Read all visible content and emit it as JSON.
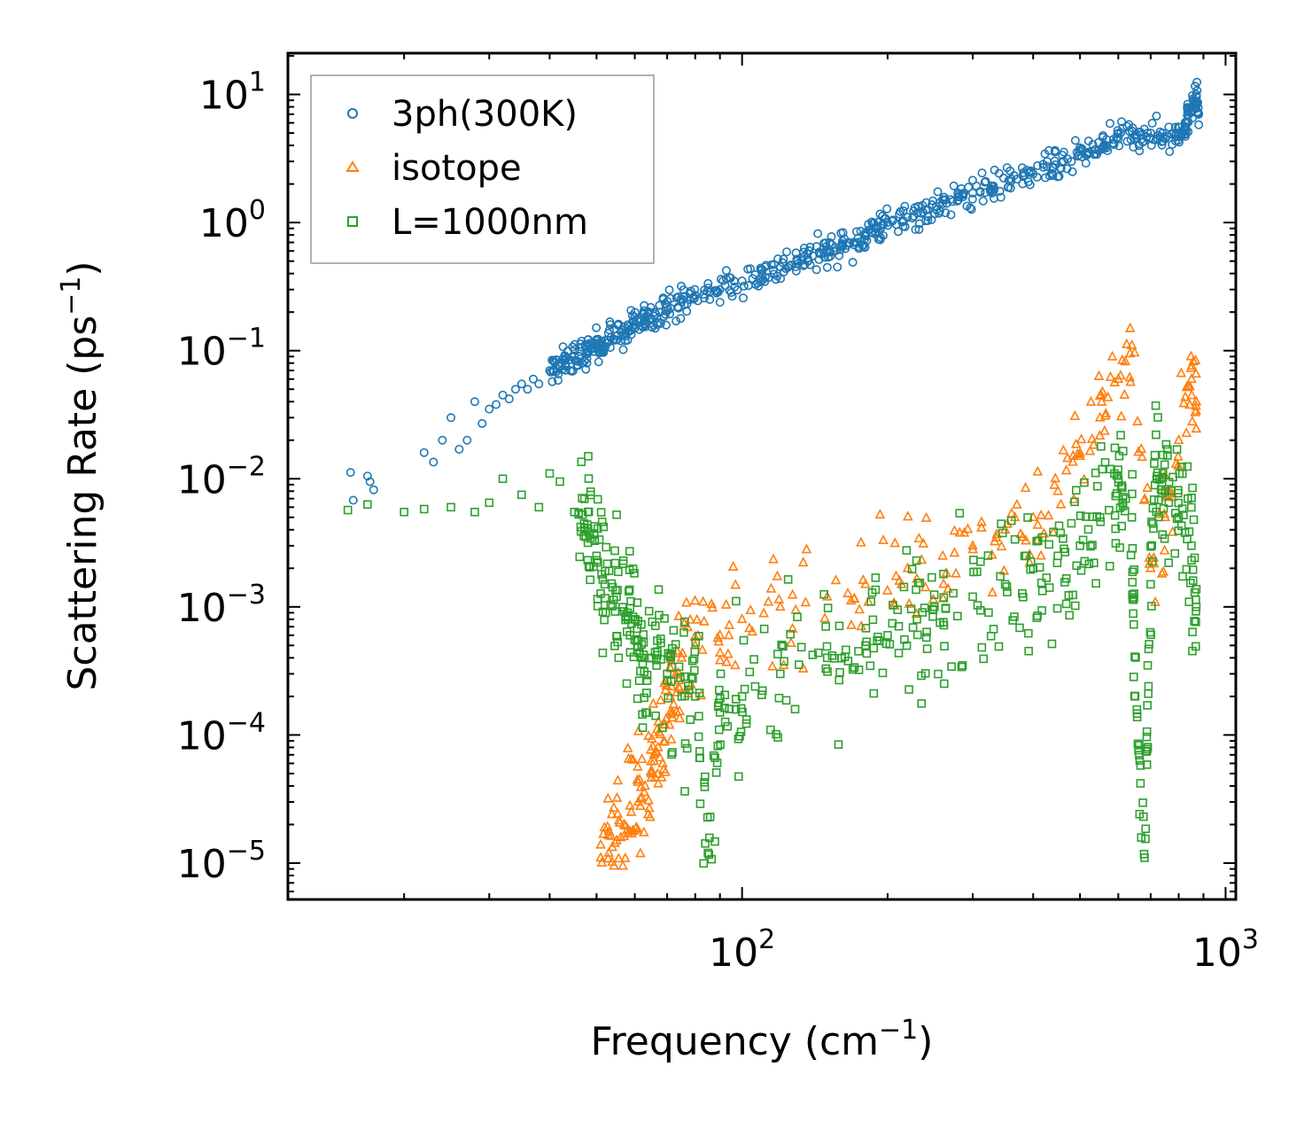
{
  "chart_data": {
    "type": "scatter",
    "title": "",
    "xlabel": "Frequency (cm",
    "xlabel_sup": "−1",
    "xlabel_end": ")",
    "ylabel": "Scattering Rate (ps",
    "ylabel_sup": "−1",
    "ylabel_end": ")",
    "xscale": "log",
    "yscale": "log",
    "xlim": [
      11.5,
      1050
    ],
    "ylim": [
      5.2e-06,
      21
    ],
    "x_ticks": [
      {
        "value": 100,
        "base": "10",
        "exp": "2"
      },
      {
        "value": 1000,
        "base": "10",
        "exp": "3"
      }
    ],
    "y_ticks": [
      {
        "value": 10,
        "base": "10",
        "exp": "1"
      },
      {
        "value": 1,
        "base": "10",
        "exp": "0"
      },
      {
        "value": 0.1,
        "base": "10",
        "exp": "−1"
      },
      {
        "value": 0.01,
        "base": "10",
        "exp": "−2"
      },
      {
        "value": 0.001,
        "base": "10",
        "exp": "−3"
      },
      {
        "value": 0.0001,
        "base": "10",
        "exp": "−4"
      },
      {
        "value": 1e-05,
        "base": "10",
        "exp": "−5"
      }
    ],
    "legend_position": "top-left",
    "series": [
      {
        "name": "3ph(300K)",
        "marker": "circle",
        "color": "#1f77b4",
        "points": [
          [
            15.5,
            0.0112
          ],
          [
            15.7,
            0.0068
          ],
          [
            16.8,
            0.0105
          ],
          [
            17.0,
            0.0095
          ],
          [
            17.3,
            0.0082
          ],
          [
            22,
            0.016
          ],
          [
            23,
            0.0135
          ],
          [
            24,
            0.02
          ],
          [
            25,
            0.03
          ],
          [
            26,
            0.017
          ],
          [
            27,
            0.02
          ],
          [
            28,
            0.04
          ],
          [
            29,
            0.027
          ],
          [
            30,
            0.035
          ],
          [
            31,
            0.038
          ],
          [
            32,
            0.045
          ],
          [
            33,
            0.042
          ],
          [
            34,
            0.05
          ],
          [
            35,
            0.055
          ],
          [
            36,
            0.05
          ],
          [
            37,
            0.06
          ],
          [
            38,
            0.055
          ],
          [
            40,
            0.07
          ],
          [
            42,
            0.075
          ],
          [
            44,
            0.085
          ],
          [
            46,
            0.09
          ],
          [
            48,
            0.1
          ],
          [
            50,
            0.11
          ],
          [
            52,
            0.12
          ],
          [
            55,
            0.13
          ],
          [
            58,
            0.14
          ],
          [
            60,
            0.16
          ],
          [
            63,
            0.18
          ],
          [
            66,
            0.2
          ],
          [
            70,
            0.22
          ],
          [
            75,
            0.24
          ],
          [
            80,
            0.27
          ],
          [
            90,
            0.3
          ],
          [
            100,
            0.35
          ],
          [
            110,
            0.4
          ],
          [
            120,
            0.45
          ],
          [
            130,
            0.5
          ],
          [
            140,
            0.55
          ],
          [
            150,
            0.6
          ],
          [
            160,
            0.65
          ],
          [
            170,
            0.7
          ],
          [
            180,
            0.8
          ],
          [
            190,
            0.9
          ],
          [
            200,
            1.0
          ],
          [
            220,
            1.1
          ],
          [
            240,
            1.25
          ],
          [
            260,
            1.4
          ],
          [
            280,
            1.5
          ],
          [
            300,
            1.7
          ],
          [
            330,
            1.9
          ],
          [
            360,
            2.1
          ],
          [
            400,
            2.4
          ],
          [
            440,
            2.7
          ],
          [
            480,
            3.0
          ],
          [
            520,
            3.5
          ],
          [
            560,
            4.0
          ],
          [
            600,
            4.5
          ],
          [
            650,
            4.8
          ],
          [
            700,
            5.0
          ],
          [
            750,
            4.5
          ],
          [
            800,
            5.0
          ],
          [
            830,
            6.0
          ],
          [
            850,
            8.0
          ],
          [
            870,
            10.0
          ],
          [
            880,
            7.0
          ]
        ]
      },
      {
        "name": "isotope",
        "marker": "triangle",
        "color": "#ff7f0e",
        "points": [
          [
            51,
            1.1e-05
          ],
          [
            53,
            1.2e-05
          ],
          [
            55,
            1.5e-05
          ],
          [
            57,
            2e-05
          ],
          [
            59,
            2.5e-05
          ],
          [
            61,
            3e-05
          ],
          [
            63,
            4e-05
          ],
          [
            65,
            5e-05
          ],
          [
            67,
            8e-05
          ],
          [
            69,
            0.00012
          ],
          [
            71,
            0.0002
          ],
          [
            73,
            0.0003
          ],
          [
            75,
            0.0004
          ],
          [
            80,
            0.0005
          ],
          [
            90,
            0.0006
          ],
          [
            100,
            0.0008
          ],
          [
            120,
            0.001
          ],
          [
            150,
            0.0012
          ],
          [
            180,
            0.0015
          ],
          [
            220,
            0.002
          ],
          [
            260,
            0.0025
          ],
          [
            300,
            0.003
          ],
          [
            350,
            0.004
          ],
          [
            400,
            0.005
          ],
          [
            450,
            0.008
          ],
          [
            500,
            0.015
          ],
          [
            550,
            0.03
          ],
          [
            600,
            0.06
          ],
          [
            640,
            0.11
          ],
          [
            700,
            0.002
          ],
          [
            750,
            0.005
          ],
          [
            800,
            0.02
          ],
          [
            850,
            0.06
          ],
          [
            870,
            0.04
          ]
        ]
      },
      {
        "name": "L=1000nm",
        "marker": "square",
        "color": "#2ca02c",
        "points": [
          [
            15.3,
            0.0057
          ],
          [
            16.8,
            0.0063
          ],
          [
            20,
            0.0055
          ],
          [
            22,
            0.0058
          ],
          [
            25,
            0.006
          ],
          [
            28,
            0.0055
          ],
          [
            30,
            0.0065
          ],
          [
            32,
            0.01
          ],
          [
            35,
            0.0075
          ],
          [
            38,
            0.006
          ],
          [
            40,
            0.011
          ],
          [
            42,
            0.0095
          ],
          [
            45,
            0.0055
          ],
          [
            48,
            0.0055
          ],
          [
            50,
            0.0025
          ],
          [
            52,
            0.0015
          ],
          [
            55,
            0.0012
          ],
          [
            58,
            0.0009
          ],
          [
            60,
            0.0008
          ],
          [
            62,
            0.0004
          ],
          [
            65,
            0.0004
          ],
          [
            70,
            0.0003
          ],
          [
            75,
            0.0002
          ],
          [
            80,
            0.0002
          ],
          [
            85,
            1.2e-05
          ],
          [
            90,
            0.00015
          ],
          [
            100,
            0.0002
          ],
          [
            120,
            0.0003
          ],
          [
            150,
            0.0004
          ],
          [
            180,
            0.0005
          ],
          [
            200,
            0.0006
          ],
          [
            230,
            0.0008
          ],
          [
            250,
            0.001
          ],
          [
            300,
            0.0012
          ],
          [
            350,
            0.0015
          ],
          [
            400,
            0.002
          ],
          [
            450,
            0.0025
          ],
          [
            500,
            0.003
          ],
          [
            550,
            0.005
          ],
          [
            600,
            0.01
          ],
          [
            640,
            0.005
          ],
          [
            650,
            0.0002
          ],
          [
            680,
            1.1e-05
          ],
          [
            700,
            0.0015
          ],
          [
            720,
            0.01
          ],
          [
            750,
            0.008
          ],
          [
            800,
            0.005
          ],
          [
            850,
            0.003
          ],
          [
            870,
            0.001
          ]
        ]
      }
    ]
  }
}
